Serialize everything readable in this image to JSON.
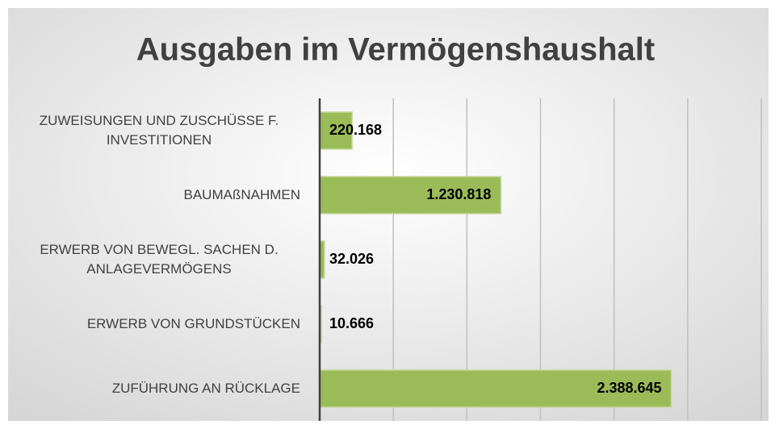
{
  "chart_data": {
    "type": "bar",
    "orientation": "horizontal",
    "title": "Ausgaben im Vermögenshaushalt",
    "categories": [
      "ZUWEISUNGEN UND ZUSCHÜSSE F. INVESTITIONEN",
      "BAUMAßNAHMEN",
      "ERWERB VON BEWEGL. SACHEN D. ANLAGEVERMÖGENS",
      "ERWERB VON GRUNDSTÜCKEN",
      "ZUFÜHRUNG AN RÜCKLAGE"
    ],
    "values": [
      220168,
      1230818,
      32026,
      10666,
      2388645
    ],
    "value_labels": [
      "220.168",
      "1.230.818",
      "32.026",
      "10.666",
      "2.388.645"
    ],
    "color": "#9bbb59",
    "xlim": [
      0,
      3000000
    ],
    "xticks": [
      0,
      500000,
      1000000,
      1500000,
      2000000,
      2500000,
      3000000
    ],
    "grid": true
  }
}
